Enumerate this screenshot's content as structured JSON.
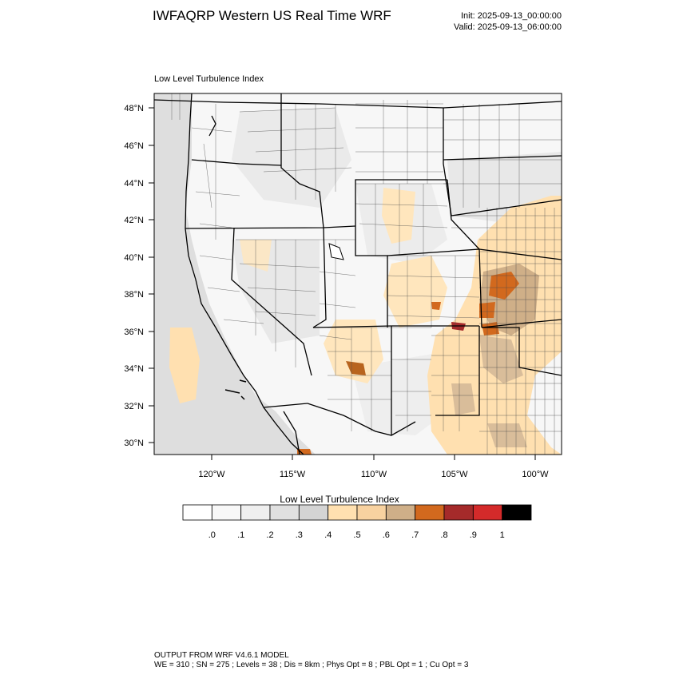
{
  "header": {
    "title": "IWFAQRP Western US Real Time WRF",
    "init": "Init: 2025-09-13_00:00:00",
    "valid": "Valid: 2025-09-13_06:00:00"
  },
  "panel": {
    "title": "Low Level Turbulence Index"
  },
  "axes": {
    "lat_labels": [
      "48°N",
      "46°N",
      "44°N",
      "42°N",
      "40°N",
      "38°N",
      "36°N",
      "34°N",
      "32°N",
      "30°N"
    ],
    "lon_labels": [
      "120°W",
      "115°W",
      "110°W",
      "105°W",
      "100°W"
    ]
  },
  "colorbar": {
    "title": "Low Level Turbulence Index",
    "colors": [
      "#ffffff",
      "#f8f8f8",
      "#efefef",
      "#e0e0e0",
      "#d4d4d4",
      "#ffe0b0",
      "#f8d2a0",
      "#cfaf88",
      "#d2691e",
      "#a52a2a",
      "#d42a2a",
      "#000000"
    ],
    "tick_labels": [
      ".0",
      ".1",
      ".2",
      ".3",
      ".4",
      ".5",
      ".6",
      ".7",
      ".8",
      ".9",
      "1"
    ]
  },
  "footer": {
    "line1": "OUTPUT FROM WRF V4.6.1 MODEL",
    "line2": "WE = 310 ; SN = 275 ; Levels = 38 ; Dis = 8km ; Phys Opt = 8 ; PBL Opt = 1 ; Cu Opt = 3"
  }
}
